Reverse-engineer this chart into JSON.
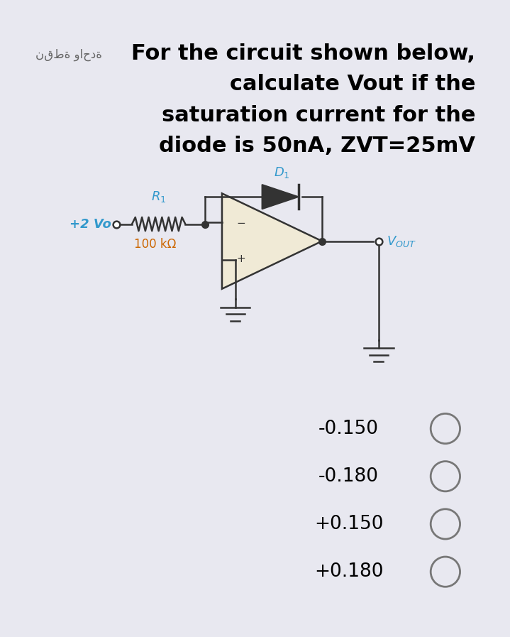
{
  "bg_color": "#e8e8f0",
  "white_bg": "#ffffff",
  "title_line1": "For the circuit shown below,",
  "title_line2": "calculate Vout if the",
  "title_line3": "saturation current for the",
  "title_line4": "diode is 50nA, ZVT=25mV",
  "arabic_text": "نقطة واحدة",
  "label_100k": "100 kΩ",
  "label_2V": "+2 Vo",
  "label_plus": "+",
  "label_minus": "−",
  "choices": [
    "-0.150",
    "-0.180",
    "+0.150",
    "+0.180"
  ],
  "opamp_fill": "#f0ead6",
  "line_color": "#333333",
  "cyan_color": "#3399cc",
  "orange_color": "#cc6600",
  "title_fontsize": 22,
  "arabic_fontsize": 12,
  "choice_fontsize": 19
}
